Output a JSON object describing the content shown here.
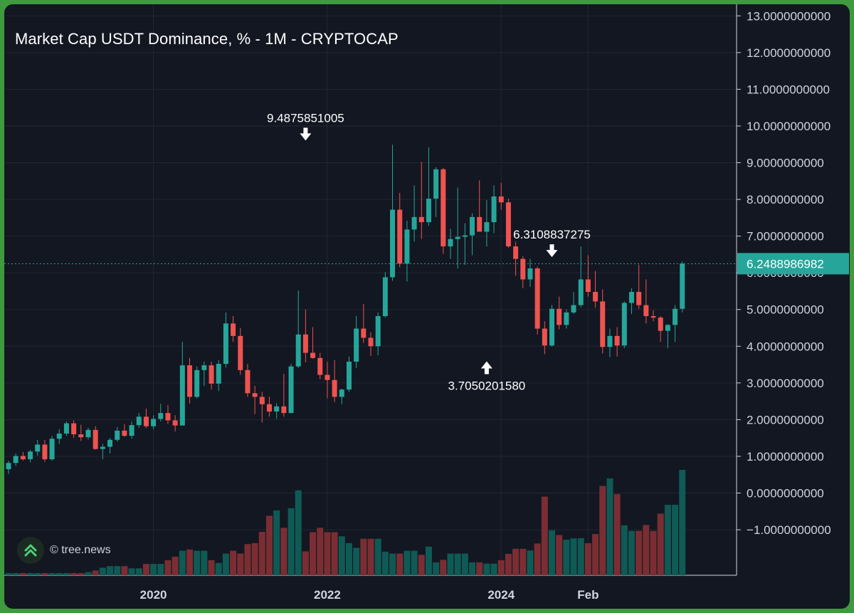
{
  "chart_data": {
    "type": "candlestick",
    "title": "Market Cap USDT Dominance, % - 1M - CRYPTOCAP",
    "interval": "1M",
    "exchange": "CRYPTOCAP",
    "x_ticks": [
      "2020",
      "2022",
      "2024",
      "Feb"
    ],
    "y_ticks": [
      "13.0000000000",
      "12.0000000000",
      "11.0000000000",
      "10.0000000000",
      "9.0000000000",
      "8.0000000000",
      "7.0000000000",
      "6.0000000000",
      "5.0000000000",
      "4.0000000000",
      "3.0000000000",
      "2.0000000000",
      "1.0000000000",
      "0.0000000000",
      "−1.0000000000"
    ],
    "ylim": [
      -1.6,
      13.2
    ],
    "last_price": 6.2488986982,
    "last_price_label": "6.2488986982",
    "annotations": [
      {
        "label": "9.4875851005",
        "value": 9.4875851005,
        "candle_index": 41,
        "direction": "down"
      },
      {
        "label": "6.3108837275",
        "value": 6.3108837275,
        "candle_index": 75,
        "direction": "down"
      },
      {
        "label": "3.7050201580",
        "value": 3.705020158,
        "candle_index": 66,
        "direction": "up"
      }
    ],
    "colors": {
      "up": "#26a69a",
      "down": "#ef5350",
      "up_volume": "#0f5a55",
      "down_volume": "#7a2e33",
      "grid": "#232733",
      "text": "#d1d4dc",
      "price_line": "#26a69a"
    },
    "candles": [
      {
        "o": 0.65,
        "h": 0.88,
        "l": 0.52,
        "c": 0.82,
        "v": 0.07
      },
      {
        "o": 0.82,
        "h": 1.08,
        "l": 0.74,
        "c": 1.01,
        "v": 0.07
      },
      {
        "o": 1.01,
        "h": 1.12,
        "l": 0.88,
        "c": 0.92,
        "v": 0.07
      },
      {
        "o": 0.92,
        "h": 1.18,
        "l": 0.84,
        "c": 1.13,
        "v": 0.07
      },
      {
        "o": 1.13,
        "h": 1.45,
        "l": 1.02,
        "c": 1.32,
        "v": 0.07
      },
      {
        "o": 1.32,
        "h": 1.45,
        "l": 0.85,
        "c": 0.92,
        "v": 0.07
      },
      {
        "o": 0.92,
        "h": 1.56,
        "l": 0.88,
        "c": 1.48,
        "v": 0.07
      },
      {
        "o": 1.48,
        "h": 1.74,
        "l": 1.34,
        "c": 1.62,
        "v": 0.07
      },
      {
        "o": 1.62,
        "h": 1.95,
        "l": 1.56,
        "c": 1.9,
        "v": 0.07
      },
      {
        "o": 1.9,
        "h": 1.98,
        "l": 1.5,
        "c": 1.6,
        "v": 0.07
      },
      {
        "o": 1.6,
        "h": 1.86,
        "l": 1.42,
        "c": 1.52,
        "v": 0.07
      },
      {
        "o": 1.52,
        "h": 1.78,
        "l": 1.46,
        "c": 1.72,
        "v": 0.1
      },
      {
        "o": 1.72,
        "h": 1.82,
        "l": 1.18,
        "c": 1.2,
        "v": 0.15
      },
      {
        "o": 1.2,
        "h": 1.34,
        "l": 0.92,
        "c": 1.26,
        "v": 0.24
      },
      {
        "o": 1.26,
        "h": 1.5,
        "l": 1.08,
        "c": 1.45,
        "v": 0.29
      },
      {
        "o": 1.45,
        "h": 1.8,
        "l": 1.4,
        "c": 1.7,
        "v": 0.29
      },
      {
        "o": 1.7,
        "h": 1.88,
        "l": 1.53,
        "c": 1.56,
        "v": 0.29
      },
      {
        "o": 1.56,
        "h": 1.95,
        "l": 1.48,
        "c": 1.85,
        "v": 0.22
      },
      {
        "o": 1.85,
        "h": 2.18,
        "l": 1.78,
        "c": 2.08,
        "v": 0.22
      },
      {
        "o": 2.08,
        "h": 2.3,
        "l": 1.77,
        "c": 1.82,
        "v": 0.36
      },
      {
        "o": 1.82,
        "h": 2.12,
        "l": 1.74,
        "c": 2.02,
        "v": 0.36
      },
      {
        "o": 2.02,
        "h": 2.43,
        "l": 1.95,
        "c": 2.18,
        "v": 0.36
      },
      {
        "o": 2.18,
        "h": 2.4,
        "l": 1.88,
        "c": 1.98,
        "v": 0.48
      },
      {
        "o": 1.98,
        "h": 2.12,
        "l": 1.68,
        "c": 1.84,
        "v": 0.59
      },
      {
        "o": 1.84,
        "h": 4.12,
        "l": 1.85,
        "c": 3.48,
        "v": 0.78
      },
      {
        "o": 3.48,
        "h": 3.68,
        "l": 2.44,
        "c": 2.62,
        "v": 0.82
      },
      {
        "o": 2.62,
        "h": 3.45,
        "l": 2.58,
        "c": 3.35,
        "v": 0.78
      },
      {
        "o": 3.35,
        "h": 3.58,
        "l": 2.92,
        "c": 3.48,
        "v": 0.78
      },
      {
        "o": 3.48,
        "h": 3.58,
        "l": 2.82,
        "c": 2.98,
        "v": 0.48
      },
      {
        "o": 2.98,
        "h": 3.62,
        "l": 2.78,
        "c": 3.52,
        "v": 0.39
      },
      {
        "o": 3.52,
        "h": 4.92,
        "l": 3.42,
        "c": 4.62,
        "v": 0.69
      },
      {
        "o": 4.62,
        "h": 4.82,
        "l": 4.12,
        "c": 4.28,
        "v": 0.78
      },
      {
        "o": 4.28,
        "h": 4.5,
        "l": 3.22,
        "c": 3.35,
        "v": 0.69
      },
      {
        "o": 3.35,
        "h": 3.52,
        "l": 2.62,
        "c": 2.72,
        "v": 0.99
      },
      {
        "o": 2.72,
        "h": 2.92,
        "l": 2.15,
        "c": 2.62,
        "v": 1.02
      },
      {
        "o": 2.62,
        "h": 2.76,
        "l": 1.92,
        "c": 2.42,
        "v": 1.38
      },
      {
        "o": 2.42,
        "h": 2.62,
        "l": 2.08,
        "c": 2.22,
        "v": 1.89
      },
      {
        "o": 2.22,
        "h": 2.45,
        "l": 2.02,
        "c": 2.36,
        "v": 2.06
      },
      {
        "o": 2.36,
        "h": 3.25,
        "l": 2.08,
        "c": 2.18,
        "v": 1.51
      },
      {
        "o": 2.18,
        "h": 3.52,
        "l": 2.18,
        "c": 3.45,
        "v": 2.13
      },
      {
        "o": 3.45,
        "h": 5.52,
        "l": 3.4,
        "c": 4.32,
        "v": 2.7
      },
      {
        "o": 4.32,
        "h": 5.0,
        "l": 3.56,
        "c": 3.82,
        "v": 0.76
      },
      {
        "o": 3.82,
        "h": 4.52,
        "l": 3.66,
        "c": 3.68,
        "v": 1.37
      },
      {
        "o": 3.68,
        "h": 3.82,
        "l": 3.1,
        "c": 3.22,
        "v": 1.51
      },
      {
        "o": 3.22,
        "h": 3.58,
        "l": 2.58,
        "c": 3.08,
        "v": 1.37
      },
      {
        "o": 3.08,
        "h": 3.62,
        "l": 2.48,
        "c": 2.62,
        "v": 1.37
      },
      {
        "o": 2.62,
        "h": 2.84,
        "l": 2.42,
        "c": 2.82,
        "v": 1.24
      },
      {
        "o": 2.82,
        "h": 3.72,
        "l": 2.76,
        "c": 3.58,
        "v": 1.02
      },
      {
        "o": 3.58,
        "h": 4.82,
        "l": 3.41,
        "c": 4.48,
        "v": 0.87
      },
      {
        "o": 4.48,
        "h": 5.15,
        "l": 4.09,
        "c": 4.23,
        "v": 1.16
      },
      {
        "o": 4.23,
        "h": 4.38,
        "l": 3.74,
        "c": 4.0,
        "v": 1.16
      },
      {
        "o": 4.0,
        "h": 4.92,
        "l": 3.75,
        "c": 4.82,
        "v": 1.16
      },
      {
        "o": 4.82,
        "h": 6.02,
        "l": 4.78,
        "c": 5.88,
        "v": 0.75
      },
      {
        "o": 5.88,
        "h": 9.4875851005,
        "l": 5.78,
        "c": 7.72,
        "v": 0.69
      },
      {
        "o": 7.72,
        "h": 8.18,
        "l": 6.15,
        "c": 6.25,
        "v": 0.69
      },
      {
        "o": 6.25,
        "h": 7.42,
        "l": 5.76,
        "c": 7.18,
        "v": 0.78
      },
      {
        "o": 7.18,
        "h": 8.38,
        "l": 6.85,
        "c": 7.52,
        "v": 0.78
      },
      {
        "o": 7.52,
        "h": 9.02,
        "l": 6.92,
        "c": 7.38,
        "v": 0.65
      },
      {
        "o": 7.38,
        "h": 9.42,
        "l": 7.28,
        "c": 8.02,
        "v": 0.91
      },
      {
        "o": 8.02,
        "h": 8.88,
        "l": 7.52,
        "c": 8.82,
        "v": 0.41
      },
      {
        "o": 8.82,
        "h": 8.86,
        "l": 6.52,
        "c": 6.72,
        "v": 0.49
      },
      {
        "o": 6.72,
        "h": 7.2,
        "l": 6.38,
        "c": 6.92,
        "v": 0.69
      },
      {
        "o": 6.92,
        "h": 8.32,
        "l": 6.12,
        "c": 6.98,
        "v": 0.69
      },
      {
        "o": 6.98,
        "h": 7.35,
        "l": 6.22,
        "c": 7.02,
        "v": 0.69
      },
      {
        "o": 7.02,
        "h": 7.62,
        "l": 6.48,
        "c": 7.52,
        "v": 0.41
      },
      {
        "o": 7.52,
        "h": 8.52,
        "l": 7.12,
        "c": 7.12,
        "v": 0.41
      },
      {
        "o": 7.12,
        "h": 7.98,
        "l": 6.72,
        "c": 7.38,
        "v": 0.37
      },
      {
        "o": 7.38,
        "h": 8.38,
        "l": 7.08,
        "c": 8.08,
        "v": 0.37
      },
      {
        "o": 8.08,
        "h": 8.45,
        "l": 7.72,
        "c": 7.92,
        "v": 0.48
      },
      {
        "o": 7.92,
        "h": 8.02,
        "l": 6.68,
        "c": 6.72,
        "v": 0.68
      },
      {
        "o": 6.72,
        "h": 6.85,
        "l": 5.92,
        "c": 6.38,
        "v": 0.84
      },
      {
        "o": 6.38,
        "h": 6.45,
        "l": 5.58,
        "c": 5.82,
        "v": 0.84
      },
      {
        "o": 5.82,
        "h": 6.38,
        "l": 5.62,
        "c": 6.12,
        "v": 0.79
      },
      {
        "o": 6.12,
        "h": 6.17,
        "l": 4.32,
        "c": 4.48,
        "v": 1.01
      },
      {
        "o": 4.48,
        "h": 4.68,
        "l": 3.78,
        "c": 4.02,
        "v": 2.5
      },
      {
        "o": 4.02,
        "h": 5.12,
        "l": 3.99,
        "c": 5.02,
        "v": 1.43
      },
      {
        "o": 5.02,
        "h": 5.35,
        "l": 4.46,
        "c": 4.58,
        "v": 1.28
      },
      {
        "o": 4.58,
        "h": 5.0,
        "l": 4.48,
        "c": 4.92,
        "v": 1.13
      },
      {
        "o": 4.92,
        "h": 5.48,
        "l": 4.88,
        "c": 5.12,
        "v": 1.17
      },
      {
        "o": 5.12,
        "h": 6.72,
        "l": 5.06,
        "c": 5.82,
        "v": 1.18
      },
      {
        "o": 5.82,
        "h": 6.48,
        "l": 5.35,
        "c": 5.48,
        "v": 1.02
      },
      {
        "o": 5.48,
        "h": 6.05,
        "l": 5.05,
        "c": 5.22,
        "v": 1.31
      },
      {
        "o": 5.22,
        "h": 5.55,
        "l": 3.8,
        "c": 3.98,
        "v": 2.84
      },
      {
        "o": 3.98,
        "h": 4.48,
        "l": 3.705020158,
        "c": 4.28,
        "v": 3.08
      },
      {
        "o": 4.28,
        "h": 4.52,
        "l": 3.72,
        "c": 4.02,
        "v": 2.58
      },
      {
        "o": 4.02,
        "h": 5.22,
        "l": 3.95,
        "c": 5.18,
        "v": 1.59
      },
      {
        "o": 5.18,
        "h": 5.58,
        "l": 4.88,
        "c": 5.48,
        "v": 1.41
      },
      {
        "o": 5.48,
        "h": 6.22,
        "l": 5.02,
        "c": 5.12,
        "v": 1.41
      },
      {
        "o": 5.12,
        "h": 5.82,
        "l": 4.62,
        "c": 4.82,
        "v": 1.6
      },
      {
        "o": 4.82,
        "h": 4.98,
        "l": 4.68,
        "c": 4.78,
        "v": 1.41
      },
      {
        "o": 4.78,
        "h": 4.82,
        "l": 4.12,
        "c": 4.42,
        "v": 1.96
      },
      {
        "o": 4.42,
        "h": 4.6,
        "l": 3.95,
        "c": 4.58,
        "v": 2.24
      },
      {
        "o": 4.58,
        "h": 5.12,
        "l": 4.12,
        "c": 5.02,
        "v": 2.24
      },
      {
        "o": 5.02,
        "h": 6.3108837275,
        "l": 4.92,
        "c": 6.2488986982,
        "v": 3.35
      }
    ]
  }
}
